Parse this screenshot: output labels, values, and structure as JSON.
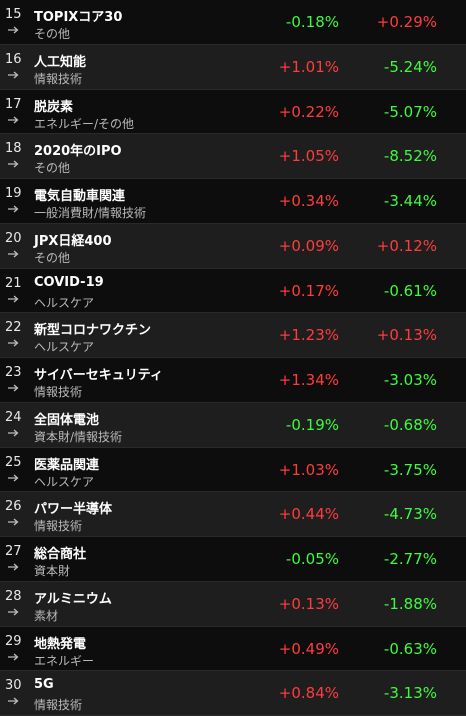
{
  "table": {
    "rows": [
      {
        "rank": 15,
        "name": "TOPIXコア30",
        "category": "その他",
        "change1": "-0.18%",
        "change2": "+0.29%"
      },
      {
        "rank": 16,
        "name": "人工知能",
        "category": "情報技術",
        "change1": "+1.01%",
        "change2": "-5.24%"
      },
      {
        "rank": 17,
        "name": "脱炭素",
        "category": "エネルギー/その他",
        "change1": "+0.22%",
        "change2": "-5.07%"
      },
      {
        "rank": 18,
        "name": "2020年のIPO",
        "category": "その他",
        "change1": "+1.05%",
        "change2": "-8.52%"
      },
      {
        "rank": 19,
        "name": "電気自動車関連",
        "category": "一般消費財/情報技術",
        "change1": "+0.34%",
        "change2": "-3.44%"
      },
      {
        "rank": 20,
        "name": "JPX日経400",
        "category": "その他",
        "change1": "+0.09%",
        "change2": "+0.12%"
      },
      {
        "rank": 21,
        "name": "COVID-19",
        "category": "ヘルスケア",
        "change1": "+0.17%",
        "change2": "-0.61%"
      },
      {
        "rank": 22,
        "name": "新型コロナワクチン",
        "category": "ヘルスケア",
        "change1": "+1.23%",
        "change2": "+0.13%"
      },
      {
        "rank": 23,
        "name": "サイバーセキュリティ",
        "category": "情報技術",
        "change1": "+1.34%",
        "change2": "-3.03%"
      },
      {
        "rank": 24,
        "name": "全固体電池",
        "category": "資本財/情報技術",
        "change1": "-0.19%",
        "change2": "-0.68%"
      },
      {
        "rank": 25,
        "name": "医薬品関連",
        "category": "ヘルスケア",
        "change1": "+1.03%",
        "change2": "-3.75%"
      },
      {
        "rank": 26,
        "name": "パワー半導体",
        "category": "情報技術",
        "change1": "+0.44%",
        "change2": "-4.73%"
      },
      {
        "rank": 27,
        "name": "総合商社",
        "category": "資本財",
        "change1": "-0.05%",
        "change2": "-2.77%"
      },
      {
        "rank": 28,
        "name": "アルミニウム",
        "category": "素材",
        "change1": "+0.13%",
        "change2": "-1.88%"
      },
      {
        "rank": 29,
        "name": "地熱発電",
        "category": "エネルギー",
        "change1": "+0.49%",
        "change2": "-0.63%"
      },
      {
        "rank": 30,
        "name": "5G",
        "category": "情報技術",
        "change1": "+0.84%",
        "change2": "-3.13%"
      }
    ]
  }
}
